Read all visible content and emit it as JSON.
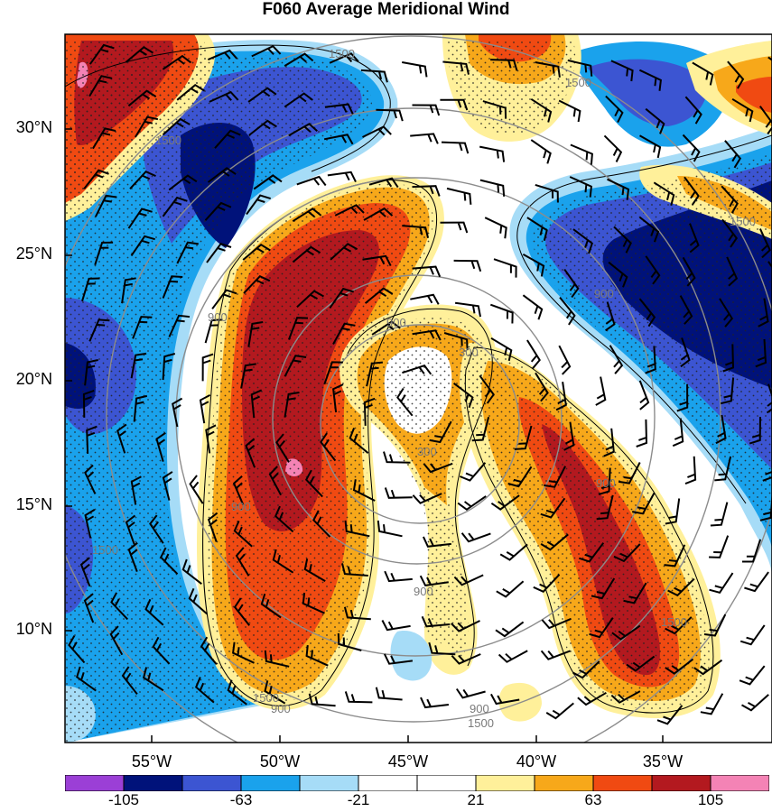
{
  "title": "F060 Average Meridional Wind",
  "map": {
    "lat_labels": [
      "30°N",
      "25°N",
      "20°N",
      "15°N",
      "10°N"
    ],
    "lon_labels": [
      "55°W",
      "50°W",
      "45°W",
      "40°W",
      "35°W"
    ],
    "height_contour_labels": [
      "1500",
      "1500",
      "1500",
      "1500",
      "1500",
      "1500",
      "1500",
      "1500",
      "900",
      "900",
      "900",
      "900",
      "900",
      "900",
      "900",
      "900",
      "300",
      "300"
    ],
    "stipple": true,
    "wind_barbs": true
  },
  "colorbar": {
    "tick_labels": [
      "-105",
      "-63",
      "-21",
      "21",
      "63",
      "105"
    ],
    "colors": [
      "#9b3fd6",
      "#00127a",
      "#3c55d2",
      "#1aa2ec",
      "#a6dcf7",
      "#ffffff",
      "#ffffff",
      "#fff09a",
      "#f7a81a",
      "#f04a12",
      "#b3191f",
      "#f483b5"
    ]
  }
}
